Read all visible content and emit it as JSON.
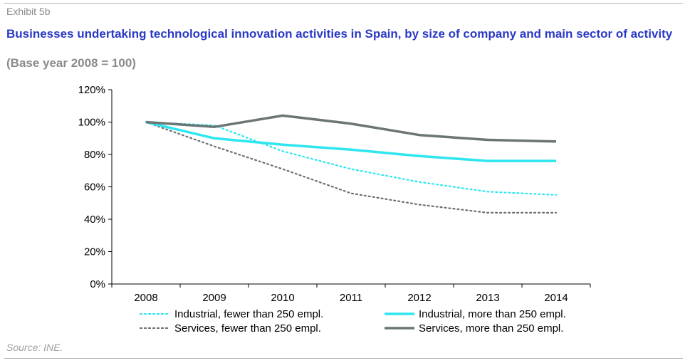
{
  "header": {
    "exhibit": "Exhibit 5b",
    "title": "Businesses undertaking technological innovation activities in Spain, by size of company and main sector of activity",
    "subtitle": "(Base year 2008 = 100)"
  },
  "footer": {
    "source": "Source: INE."
  },
  "chart_data": {
    "type": "line",
    "x": [
      "2008",
      "2009",
      "2010",
      "2011",
      "2012",
      "2013",
      "2014"
    ],
    "ylim": [
      0,
      120
    ],
    "yticks": [
      0,
      20,
      40,
      60,
      80,
      100,
      120
    ],
    "ytick_labels": [
      "0%",
      "20%",
      "40%",
      "60%",
      "80%",
      "100%",
      "120%"
    ],
    "grid": false,
    "legend_position": "bottom",
    "series": [
      {
        "name": "Industrial, fewer than 250 empl.",
        "values": [
          100,
          98,
          82,
          71,
          63,
          57,
          55
        ],
        "color": "#2ee6ef",
        "style": "dotted"
      },
      {
        "name": "Industrial, more than 250 empl.",
        "values": [
          100,
          90,
          86,
          83,
          79,
          76,
          76
        ],
        "color": "#2ee6ef",
        "style": "solid"
      },
      {
        "name": "Services, fewer than 250 empl.",
        "values": [
          100,
          85,
          71,
          56,
          49,
          44,
          44
        ],
        "color": "#6e6e6e",
        "style": "dotted"
      },
      {
        "name": "Services, more than 250 empl.",
        "values": [
          100,
          97,
          104,
          99,
          92,
          89,
          88
        ],
        "color": "#6b7575",
        "style": "solid"
      }
    ]
  }
}
